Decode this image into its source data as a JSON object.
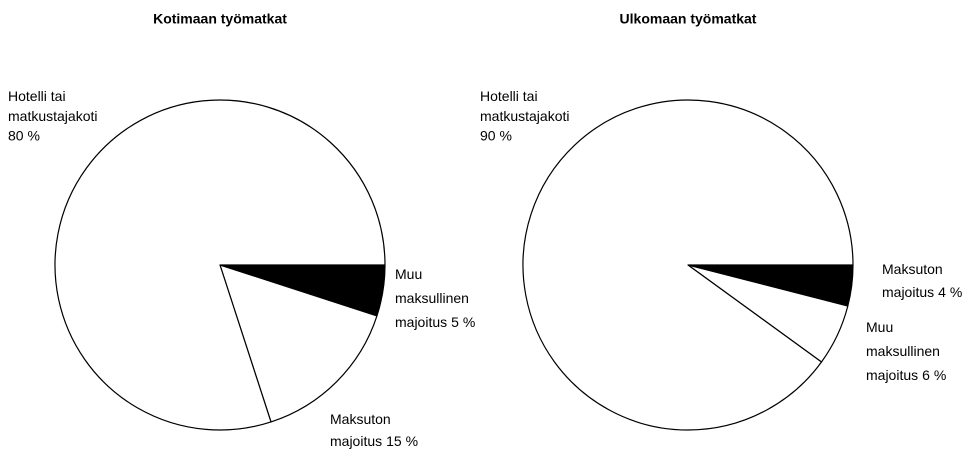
{
  "chart_data": [
    {
      "type": "pie",
      "title": "Kotimaan työmatkat",
      "categories": [
        [
          "Muu",
          "maksullinen",
          "majoitus"
        ],
        [
          "Maksuton",
          "majoitus"
        ],
        [
          "Hotelli tai",
          "matkustajakoti"
        ]
      ],
      "values": [
        5,
        15,
        80
      ],
      "value_labels": [
        "5 %",
        "15 %",
        "80 %"
      ],
      "colors": [
        "#000000",
        "#ffffff",
        "#ffffff"
      ]
    },
    {
      "type": "pie",
      "title": "Ulkomaan työmatkat",
      "categories": [
        [
          "Maksuton",
          "majoitus"
        ],
        [
          "Muu",
          "maksullinen",
          "majoitus"
        ],
        [
          "Hotelli tai",
          "matkustajakoti"
        ]
      ],
      "values": [
        4,
        6,
        90
      ],
      "value_labels": [
        "4 %",
        "6 %",
        "90 %"
      ],
      "colors": [
        "#000000",
        "#ffffff",
        "#ffffff"
      ]
    }
  ]
}
